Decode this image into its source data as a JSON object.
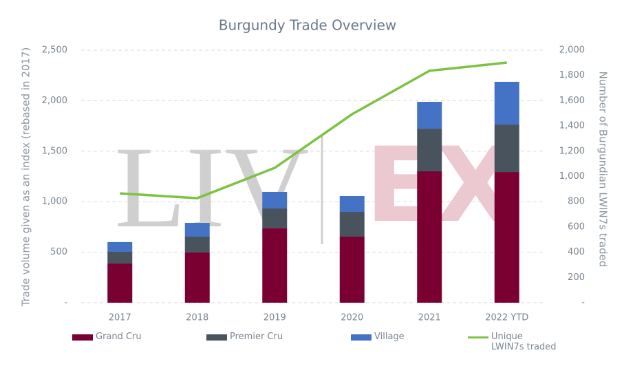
{
  "chart_data": {
    "type": "bar",
    "title": "Burgundy Trade Overview",
    "y_label": "Trade volume given as an index (rebased in 2017)",
    "y2_label": "Number of Burgundian LWIN7s traded",
    "watermark": [
      "LIV",
      "EX"
    ],
    "stacked": true,
    "grid": true,
    "categories": [
      "2017",
      "2018",
      "2019",
      "2020",
      "2021",
      "2022 YTD"
    ],
    "series": [
      {
        "name": "Grand Cru",
        "color": "#7b0032",
        "values": [
          388,
          497,
          736,
          654,
          1301,
          1294
        ]
      },
      {
        "name": "Premier Cru",
        "color": "#48535e",
        "values": [
          116,
          157,
          197,
          245,
          422,
          470
        ]
      },
      {
        "name": "Village",
        "color": "#4472c4",
        "values": [
          96,
          136,
          164,
          157,
          266,
          423
        ]
      },
      {
        "name": "Unique LWIN7s traded",
        "type": "line",
        "axis": "y2",
        "color": "#7dc242",
        "values": [
          866,
          828,
          1068,
          1493,
          1837,
          1902
        ]
      }
    ],
    "ylim": [
      0,
      2500
    ],
    "yticks": [
      {
        "value": 0,
        "label": "-"
      },
      500,
      {
        "value": 1000,
        "label": "1,000"
      },
      {
        "value": 1500,
        "label": "1,500"
      },
      {
        "value": 2000,
        "label": "2,000"
      },
      {
        "value": 2500,
        "label": "2,500"
      }
    ],
    "y2lim": [
      0,
      2000
    ],
    "y2ticks": [
      {
        "value": 0,
        "label": "-"
      },
      200,
      400,
      600,
      800,
      {
        "value": 1000,
        "label": "1,000"
      },
      {
        "value": 1200,
        "label": "1,200"
      },
      {
        "value": 1400,
        "label": "1,400"
      },
      {
        "value": 1600,
        "label": "1,600"
      },
      {
        "value": 1800,
        "label": "1,800"
      },
      {
        "value": 2000,
        "label": "2,000"
      }
    ]
  }
}
